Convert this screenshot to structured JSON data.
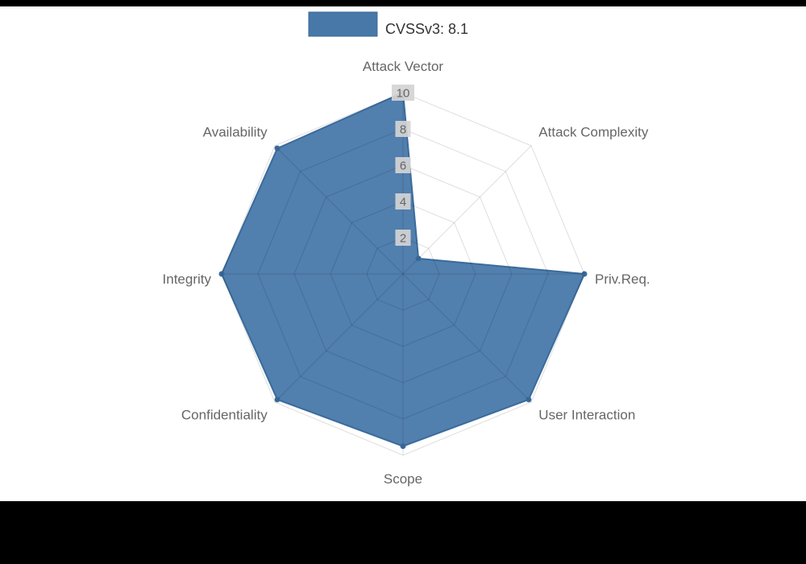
{
  "page": {
    "background": "#000000",
    "panel_background": "#ffffff"
  },
  "legend": {
    "label": "CVSSv3: 8.1",
    "swatch_color": "#4878a8",
    "text_color": "#333333"
  },
  "chart_data": {
    "type": "radar",
    "title": "CVSSv3: 8.1",
    "categories": [
      "Attack Vector",
      "Attack Complexity",
      "Priv.Req.",
      "User Interaction",
      "Scope",
      "Confidentiality",
      "Integrity",
      "Availability"
    ],
    "series": [
      {
        "name": "CVSSv3: 8.1",
        "values": [
          10,
          1.2,
          10,
          9.8,
          9.5,
          9.8,
          10,
          9.8
        ]
      }
    ],
    "ticks": [
      2,
      4,
      6,
      8,
      10
    ],
    "rmin": 0,
    "rmax": 10,
    "grid": true,
    "legend_position": "top",
    "colors": {
      "fill": "#4a7aab",
      "border": "#3a6b9c",
      "point": "#3a6b9c",
      "grid_line": "rgba(0,0,0,0.13)",
      "tick_text": "#666666",
      "tick_backdrop": "#d4d4d4",
      "axis_label": "#666666",
      "legend_text": "#333333"
    }
  }
}
